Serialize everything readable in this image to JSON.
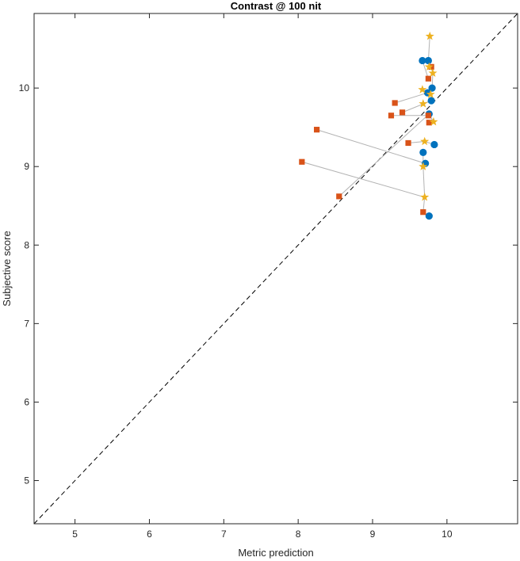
{
  "chart_data": {
    "type": "scatter",
    "title": "Contrast @ 100 nit",
    "xlabel": "Metric prediction",
    "ylabel": "Subjective score",
    "xlim": [
      4.45,
      10.95
    ],
    "ylim": [
      4.45,
      10.95
    ],
    "xticks": [
      5,
      6,
      7,
      8,
      9,
      10
    ],
    "yticks": [
      5,
      6,
      7,
      8,
      9,
      10
    ],
    "grid": false,
    "legend": "none",
    "reference_line": {
      "style": "dashed",
      "from": [
        4.45,
        4.45
      ],
      "to": [
        10.95,
        10.95
      ],
      "color": "#000000"
    },
    "series": [
      {
        "marker": "circle",
        "color": "#0072BD",
        "points": [
          [
            9.67,
            10.35
          ],
          [
            9.75,
            10.35
          ],
          [
            9.8,
            10.0
          ],
          [
            9.74,
            9.94
          ],
          [
            9.79,
            9.84
          ],
          [
            9.76,
            9.67
          ],
          [
            9.83,
            9.28
          ],
          [
            9.68,
            9.18
          ],
          [
            9.71,
            9.04
          ],
          [
            9.76,
            8.37
          ]
        ]
      },
      {
        "marker": "square",
        "color": "#D95319",
        "points": [
          [
            9.79,
            10.27
          ],
          [
            9.75,
            10.12
          ],
          [
            9.3,
            9.81
          ],
          [
            9.4,
            9.69
          ],
          [
            9.25,
            9.65
          ],
          [
            9.75,
            9.65
          ],
          [
            9.76,
            9.56
          ],
          [
            8.25,
            9.47
          ],
          [
            9.48,
            9.3
          ],
          [
            8.05,
            9.06
          ],
          [
            8.55,
            8.62
          ],
          [
            9.68,
            8.42
          ]
        ]
      },
      {
        "marker": "star",
        "color": "#EDB120",
        "points": [
          [
            9.77,
            10.66
          ],
          [
            9.76,
            10.27
          ],
          [
            9.81,
            10.19
          ],
          [
            9.67,
            9.98
          ],
          [
            9.78,
            9.92
          ],
          [
            9.68,
            9.8
          ],
          [
            9.82,
            9.57
          ],
          [
            9.7,
            9.32
          ],
          [
            9.68,
            9.0
          ],
          [
            9.7,
            8.61
          ]
        ]
      }
    ],
    "connectors": {
      "color": "#b3b3b3",
      "segments": [
        [
          [
            9.77,
            10.66
          ],
          [
            9.75,
            10.35
          ]
        ],
        [
          [
            9.75,
            10.35
          ],
          [
            9.76,
            10.27
          ]
        ],
        [
          [
            9.67,
            10.35
          ],
          [
            9.75,
            10.12
          ]
        ],
        [
          [
            9.79,
            10.27
          ],
          [
            9.81,
            10.19
          ]
        ],
        [
          [
            9.81,
            10.19
          ],
          [
            9.8,
            10.0
          ]
        ],
        [
          [
            9.67,
            9.98
          ],
          [
            9.74,
            9.94
          ]
        ],
        [
          [
            9.74,
            9.94
          ],
          [
            9.78,
            9.92
          ]
        ],
        [
          [
            9.3,
            9.81
          ],
          [
            9.74,
            9.94
          ]
        ],
        [
          [
            9.79,
            9.84
          ],
          [
            9.68,
            9.8
          ]
        ],
        [
          [
            9.4,
            9.69
          ],
          [
            9.79,
            9.84
          ]
        ],
        [
          [
            9.25,
            9.65
          ],
          [
            9.75,
            9.65
          ]
        ],
        [
          [
            9.75,
            9.65
          ],
          [
            9.76,
            9.67
          ]
        ],
        [
          [
            9.76,
            9.56
          ],
          [
            9.82,
            9.57
          ]
        ],
        [
          [
            9.82,
            9.57
          ],
          [
            9.76,
            9.67
          ]
        ],
        [
          [
            8.25,
            9.47
          ],
          [
            9.71,
            9.04
          ]
        ],
        [
          [
            9.48,
            9.3
          ],
          [
            9.7,
            9.32
          ]
        ],
        [
          [
            9.7,
            9.32
          ],
          [
            9.83,
            9.28
          ]
        ],
        [
          [
            8.55,
            8.62
          ],
          [
            9.76,
            9.67
          ]
        ],
        [
          [
            8.05,
            9.06
          ],
          [
            9.7,
            8.61
          ]
        ],
        [
          [
            9.68,
            9.18
          ],
          [
            9.68,
            9.0
          ]
        ],
        [
          [
            9.68,
            9.0
          ],
          [
            9.7,
            8.61
          ]
        ],
        [
          [
            9.7,
            8.61
          ],
          [
            9.68,
            8.42
          ]
        ],
        [
          [
            9.68,
            8.42
          ],
          [
            9.76,
            8.37
          ]
        ]
      ]
    }
  }
}
